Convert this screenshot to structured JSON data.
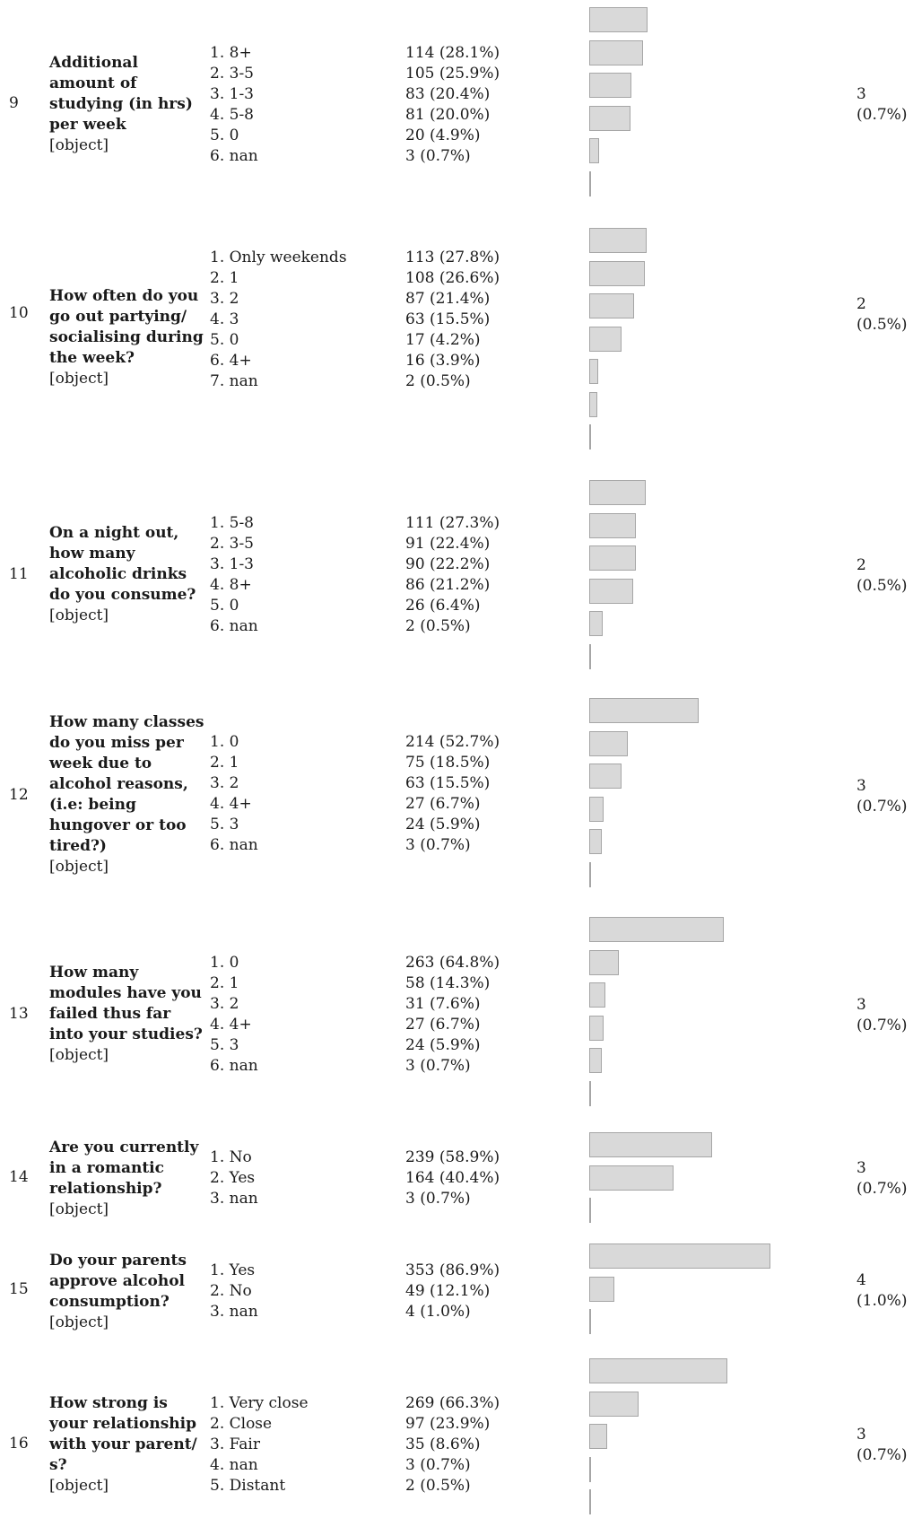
{
  "rows": [
    {
      "number": "9",
      "question": "Additional amount of studying (in hrs) per week",
      "type": "[object]",
      "categories": [
        "1. 8+",
        "2. 3-5",
        "3. 1-3",
        "4. 5-8",
        "5. 0",
        "6. nan"
      ],
      "frequencies": [
        "114 (28.1%)",
        "105 (25.9%)",
        "83 (20.4%)",
        "81 (20.0%)",
        "20 (4.9%)",
        "3 (0.7%)"
      ],
      "shares": [
        28.1,
        25.9,
        20.4,
        20.0,
        4.9,
        0.7
      ],
      "missing_count": "3",
      "missing_pct": "(0.7%)"
    },
    {
      "number": "10",
      "question": "How often do you go out partying/ socialising during the week?",
      "type": "[object]",
      "categories": [
        "1. Only weekends",
        "2. 1",
        "3. 2",
        "4. 3",
        "5. 0",
        "6. 4+",
        "7. nan"
      ],
      "frequencies": [
        "113 (27.8%)",
        "108 (26.6%)",
        "87 (21.4%)",
        "63 (15.5%)",
        "17 (4.2%)",
        "16 (3.9%)",
        "2 (0.5%)"
      ],
      "shares": [
        27.8,
        26.6,
        21.4,
        15.5,
        4.2,
        3.9,
        0.5
      ],
      "missing_count": "2",
      "missing_pct": "(0.5%)"
    },
    {
      "number": "11",
      "question": "On a night out, how many alcoholic drinks do you consume?",
      "type": "[object]",
      "categories": [
        "1. 5-8",
        "2. 3-5",
        "3. 1-3",
        "4. 8+",
        "5. 0",
        "6. nan"
      ],
      "frequencies": [
        "111 (27.3%)",
        "91 (22.4%)",
        "90 (22.2%)",
        "86 (21.2%)",
        "26 (6.4%)",
        "2 (0.5%)"
      ],
      "shares": [
        27.3,
        22.4,
        22.2,
        21.2,
        6.4,
        0.5
      ],
      "missing_count": "2",
      "missing_pct": "(0.5%)"
    },
    {
      "number": "12",
      "question": "How many classes do you miss per week due to alcohol reasons, (i.e: being hungover or too tired?)",
      "type": "[object]",
      "categories": [
        "1. 0",
        "2. 1",
        "3. 2",
        "4. 4+",
        "5. 3",
        "6. nan"
      ],
      "frequencies": [
        "214 (52.7%)",
        "75 (18.5%)",
        "63 (15.5%)",
        "27 (6.7%)",
        "24 (5.9%)",
        "3 (0.7%)"
      ],
      "shares": [
        52.7,
        18.5,
        15.5,
        6.7,
        5.9,
        0.7
      ],
      "missing_count": "3",
      "missing_pct": "(0.7%)"
    },
    {
      "number": "13",
      "question": "How many modules have you failed thus far into your studies?",
      "type": "[object]",
      "categories": [
        "1. 0",
        "2. 1",
        "3. 2",
        "4. 4+",
        "5. 3",
        "6. nan"
      ],
      "frequencies": [
        "263 (64.8%)",
        "58 (14.3%)",
        "31 (7.6%)",
        "27 (6.7%)",
        "24 (5.9%)",
        "3 (0.7%)"
      ],
      "shares": [
        64.8,
        14.3,
        7.6,
        6.7,
        5.9,
        0.7
      ],
      "missing_count": "3",
      "missing_pct": "(0.7%)"
    },
    {
      "number": "14",
      "question": "Are you currently in a romantic relationship?",
      "type": "[object]",
      "categories": [
        "1. No",
        "2. Yes",
        "3. nan"
      ],
      "frequencies": [
        "239 (58.9%)",
        "164 (40.4%)",
        "3 (0.7%)"
      ],
      "shares": [
        58.9,
        40.4,
        0.7
      ],
      "missing_count": "3",
      "missing_pct": "(0.7%)"
    },
    {
      "number": "15",
      "question": "Do your parents approve alcohol consumption?",
      "type": "[object]",
      "categories": [
        "1. Yes",
        "2. No",
        "3. nan"
      ],
      "frequencies": [
        "353 (86.9%)",
        "49 (12.1%)",
        "4 (1.0%)"
      ],
      "shares": [
        86.9,
        12.1,
        1.0
      ],
      "missing_count": "4",
      "missing_pct": "(1.0%)"
    },
    {
      "number": "16",
      "question": "How strong is your relationship with your parent/ s?",
      "type": "[object]",
      "categories": [
        "1. Very close",
        "2. Close",
        "3. Fair",
        "4. nan",
        "5. Distant"
      ],
      "frequencies": [
        "269 (66.3%)",
        "97 (23.9%)",
        "35 (8.6%)",
        "3 (0.7%)",
        "2 (0.5%)"
      ],
      "shares": [
        66.3,
        23.9,
        8.6,
        0.7,
        0.5
      ],
      "missing_count": "3",
      "missing_pct": "(0.7%)"
    }
  ]
}
